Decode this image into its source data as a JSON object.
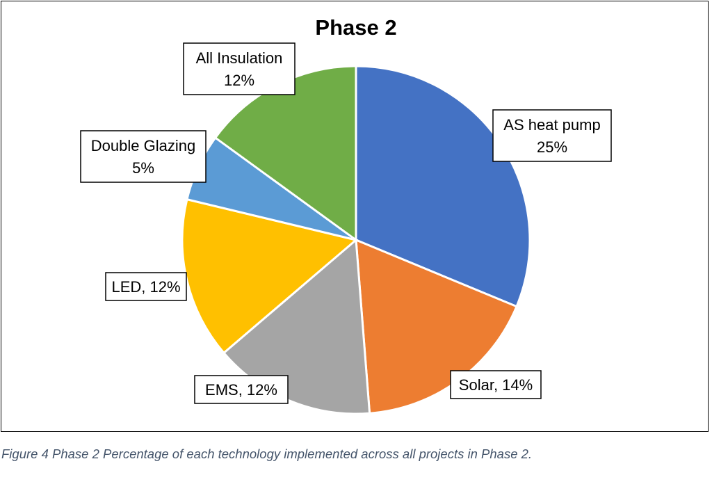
{
  "chart_data": {
    "type": "pie",
    "title": "Phase 2",
    "legend": "none",
    "slices": [
      {
        "label_lines": [
          "AS heat pump",
          "25%"
        ],
        "percent": 25,
        "color": "#4472C4"
      },
      {
        "label_lines": [
          "Solar, 14%"
        ],
        "percent": 14,
        "color": "#ED7D31"
      },
      {
        "label_lines": [
          "EMS, 12%"
        ],
        "percent": 12,
        "color": "#A5A5A5"
      },
      {
        "label_lines": [
          "LED, 12%"
        ],
        "percent": 12,
        "color": "#FFC000"
      },
      {
        "label_lines": [
          "Double Glazing",
          "5%"
        ],
        "percent": 5,
        "color": "#5B9BD5"
      },
      {
        "label_lines": [
          "All Insulation",
          "12%"
        ],
        "percent": 12,
        "color": "#70AD47"
      }
    ]
  },
  "caption": "Figure 4 Phase 2 Percentage of each technology implemented across all projects in Phase 2."
}
